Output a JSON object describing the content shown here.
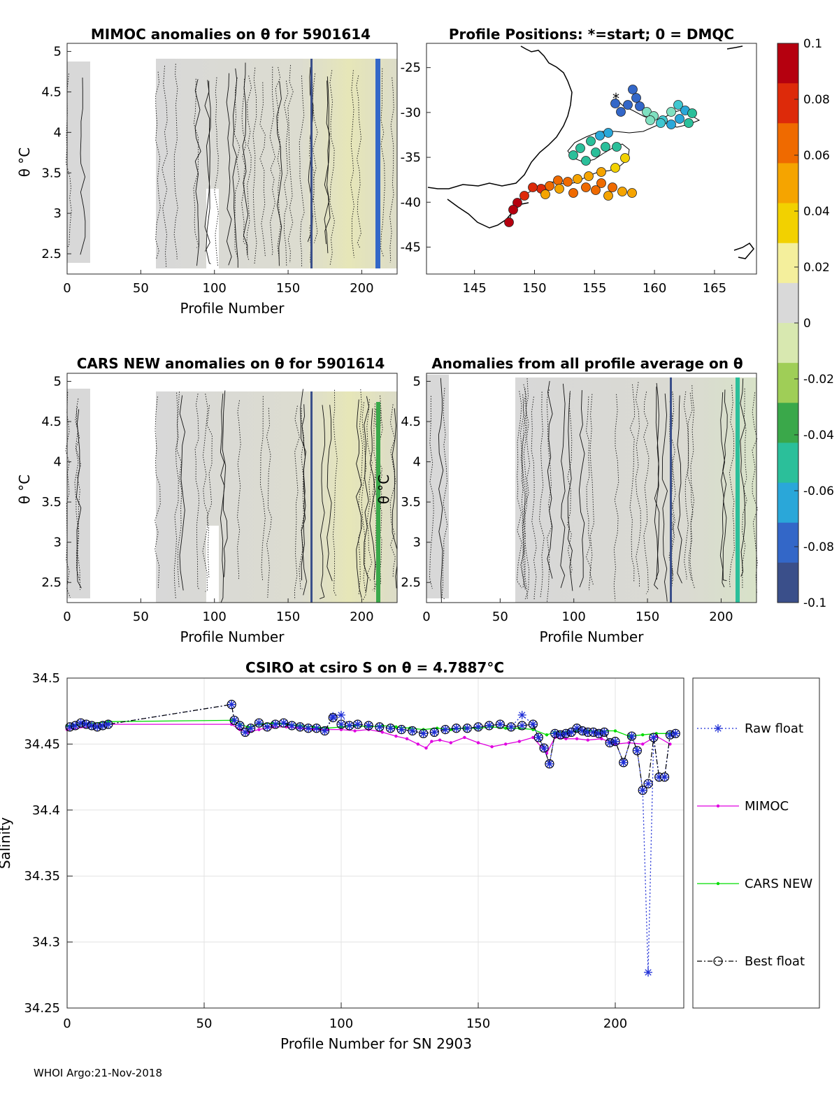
{
  "footer": "WHOI Argo:21-Nov-2018",
  "colors": {
    "raw": "#1f2fd6",
    "mimoc": "#e000e0",
    "cars": "#00dd00",
    "best": "#000000",
    "field": "#d7d7d7",
    "cmap": [
      "#3a4f8a",
      "#3367c8",
      "#2aa7d9",
      "#2bbf9a",
      "#3aa84a",
      "#9fce57",
      "#d8e8b0",
      "#d9d9d9",
      "#f4ef9c",
      "#f2d100",
      "#f5a400",
      "#ef6a00",
      "#dd2a0a",
      "#b5000f"
    ]
  },
  "panels": {
    "mimoc": {
      "title": "MIMOC anomalies on θ  for 5901614",
      "ylabel": "θ °C",
      "xlabel": "Profile Number",
      "xticks": [
        "0",
        "50",
        "100",
        "150",
        "200"
      ],
      "yticks": [
        "2.5",
        "3",
        "3.5",
        "4",
        "4.5",
        "5"
      ]
    },
    "map": {
      "title": "Profile Positions: *=start; 0 = DMQC",
      "xticks": [
        "145",
        "150",
        "155",
        "160",
        "165"
      ],
      "yticks": [
        "-45",
        "-40",
        "-35",
        "-30",
        "-25"
      ]
    },
    "cars": {
      "title": "CARS NEW anomalies on θ for 5901614",
      "ylabel": "θ °C",
      "xlabel": "Profile Number",
      "xticks": [
        "0",
        "50",
        "100",
        "150",
        "200"
      ],
      "yticks": [
        "2.5",
        "3",
        "3.5",
        "4",
        "4.5",
        "5"
      ]
    },
    "avg": {
      "title": "Anomalies from all profile average on θ",
      "ylabel": "θ °C",
      "xlabel": "Profile Number",
      "xticks": [
        "0",
        "50",
        "100",
        "150",
        "200"
      ],
      "yticks": [
        "2.5",
        "3",
        "3.5",
        "4",
        "4.5",
        "5"
      ]
    },
    "colorbar": {
      "ticks": [
        "0.1",
        "0.08",
        "0.06",
        "0.04",
        "0.02",
        "0",
        "-0.02",
        "-0.04",
        "-0.06",
        "-0.08",
        "-0.1"
      ]
    }
  },
  "chart_data": [
    {
      "type": "line",
      "title": "CSIRO at csiro S on θ = 4.7887°C",
      "xlabel": "Profile Number for SN 2903",
      "ylabel": "Salinity",
      "xlim": [
        0,
        225
      ],
      "ylim": [
        34.25,
        34.5
      ],
      "xticks": [
        "0",
        "50",
        "100",
        "150",
        "200"
      ],
      "yticks": [
        "34.25",
        "34.3",
        "34.35",
        "34.4",
        "34.45",
        "34.5"
      ],
      "grid": true,
      "legend_position": "outside-right",
      "series": [
        {
          "name": "Raw float",
          "marker": "asterisk",
          "x": [
            1,
            3,
            5,
            7,
            9,
            11,
            13,
            15,
            60,
            61,
            63,
            65,
            67,
            70,
            73,
            76,
            79,
            82,
            85,
            88,
            91,
            94,
            97,
            100,
            103,
            106,
            110,
            114,
            118,
            122,
            126,
            130,
            134,
            138,
            142,
            146,
            150,
            154,
            158,
            162,
            166,
            170,
            172,
            174,
            176,
            178,
            180,
            182,
            184,
            186,
            188,
            190,
            192,
            194,
            196,
            198,
            200,
            203,
            206,
            208,
            210,
            212,
            214,
            216,
            218,
            220,
            222
          ],
          "y": [
            34.463,
            34.464,
            34.466,
            34.465,
            34.464,
            34.463,
            34.464,
            34.465,
            34.48,
            34.468,
            34.464,
            34.459,
            34.462,
            34.466,
            34.463,
            34.465,
            34.466,
            34.464,
            34.463,
            34.462,
            34.462,
            34.46,
            34.471,
            34.472,
            34.464,
            34.465,
            34.464,
            34.463,
            34.462,
            34.461,
            34.46,
            34.458,
            34.459,
            34.461,
            34.462,
            34.462,
            34.463,
            34.464,
            34.465,
            34.463,
            34.472,
            34.465,
            34.455,
            34.447,
            34.435,
            34.458,
            34.457,
            34.458,
            34.459,
            34.462,
            34.46,
            34.459,
            34.459,
            34.458,
            34.459,
            34.451,
            34.452,
            34.436,
            34.456,
            34.445,
            34.415,
            34.277,
            34.455,
            34.425,
            34.425,
            34.457,
            34.458
          ]
        },
        {
          "name": "MIMOC",
          "marker": "dot",
          "x": [
            0,
            15,
            60,
            63,
            66,
            70,
            75,
            80,
            85,
            90,
            95,
            100,
            105,
            110,
            115,
            120,
            124,
            128,
            131,
            133,
            136,
            140,
            145,
            150,
            155,
            160,
            165,
            170,
            175,
            178,
            182,
            186,
            190,
            195,
            200,
            205,
            210,
            215,
            220
          ],
          "y": [
            34.461,
            34.465,
            34.465,
            34.461,
            34.459,
            34.461,
            34.463,
            34.463,
            34.462,
            34.461,
            34.461,
            34.461,
            34.46,
            34.461,
            34.459,
            34.456,
            34.454,
            34.45,
            34.447,
            34.452,
            34.453,
            34.451,
            34.455,
            34.451,
            34.448,
            34.45,
            34.452,
            34.455,
            34.443,
            34.455,
            34.454,
            34.454,
            34.453,
            34.454,
            34.45,
            34.451,
            34.45,
            34.456,
            34.45
          ]
        },
        {
          "name": "CARS NEW",
          "marker": "dot",
          "x": [
            0,
            15,
            60,
            63,
            66,
            70,
            75,
            80,
            85,
            90,
            95,
            100,
            105,
            110,
            115,
            120,
            125,
            130,
            135,
            140,
            145,
            150,
            155,
            160,
            165,
            170,
            175,
            178,
            182,
            186,
            190,
            195,
            200,
            205,
            210,
            215,
            220
          ],
          "y": [
            34.464,
            34.467,
            34.468,
            34.465,
            34.463,
            34.465,
            34.466,
            34.465,
            34.464,
            34.463,
            34.462,
            34.463,
            34.464,
            34.463,
            34.464,
            34.463,
            34.462,
            34.461,
            34.462,
            34.461,
            34.462,
            34.462,
            34.463,
            34.462,
            34.462,
            34.461,
            34.457,
            34.459,
            34.459,
            34.46,
            34.46,
            34.46,
            34.46,
            34.456,
            34.457,
            34.458,
            34.458
          ]
        },
        {
          "name": "Best float",
          "marker": "circle",
          "x": [
            1,
            3,
            5,
            7,
            9,
            11,
            13,
            15,
            60,
            61,
            63,
            65,
            67,
            70,
            73,
            76,
            79,
            82,
            85,
            88,
            91,
            94,
            97,
            100,
            103,
            106,
            110,
            114,
            118,
            122,
            126,
            130,
            134,
            138,
            142,
            146,
            150,
            154,
            158,
            162,
            166,
            170,
            172,
            174,
            176,
            178,
            180,
            182,
            184,
            186,
            188,
            190,
            192,
            194,
            196,
            198,
            200,
            203,
            206,
            208,
            210,
            212,
            214,
            216,
            218,
            220,
            222
          ],
          "y": [
            34.463,
            34.464,
            34.466,
            34.465,
            34.464,
            34.463,
            34.464,
            34.465,
            34.48,
            34.468,
            34.464,
            34.459,
            34.462,
            34.466,
            34.463,
            34.465,
            34.466,
            34.464,
            34.463,
            34.462,
            34.462,
            34.46,
            34.47,
            34.465,
            34.464,
            34.465,
            34.464,
            34.463,
            34.462,
            34.461,
            34.46,
            34.458,
            34.459,
            34.461,
            34.462,
            34.462,
            34.463,
            34.464,
            34.465,
            34.463,
            34.464,
            34.465,
            34.455,
            34.447,
            34.435,
            34.458,
            34.457,
            34.458,
            34.459,
            34.462,
            34.46,
            34.459,
            34.459,
            34.458,
            34.459,
            34.451,
            34.452,
            34.436,
            34.456,
            34.445,
            34.415,
            34.42,
            34.455,
            34.425,
            34.425,
            34.457,
            34.458
          ]
        }
      ]
    }
  ]
}
